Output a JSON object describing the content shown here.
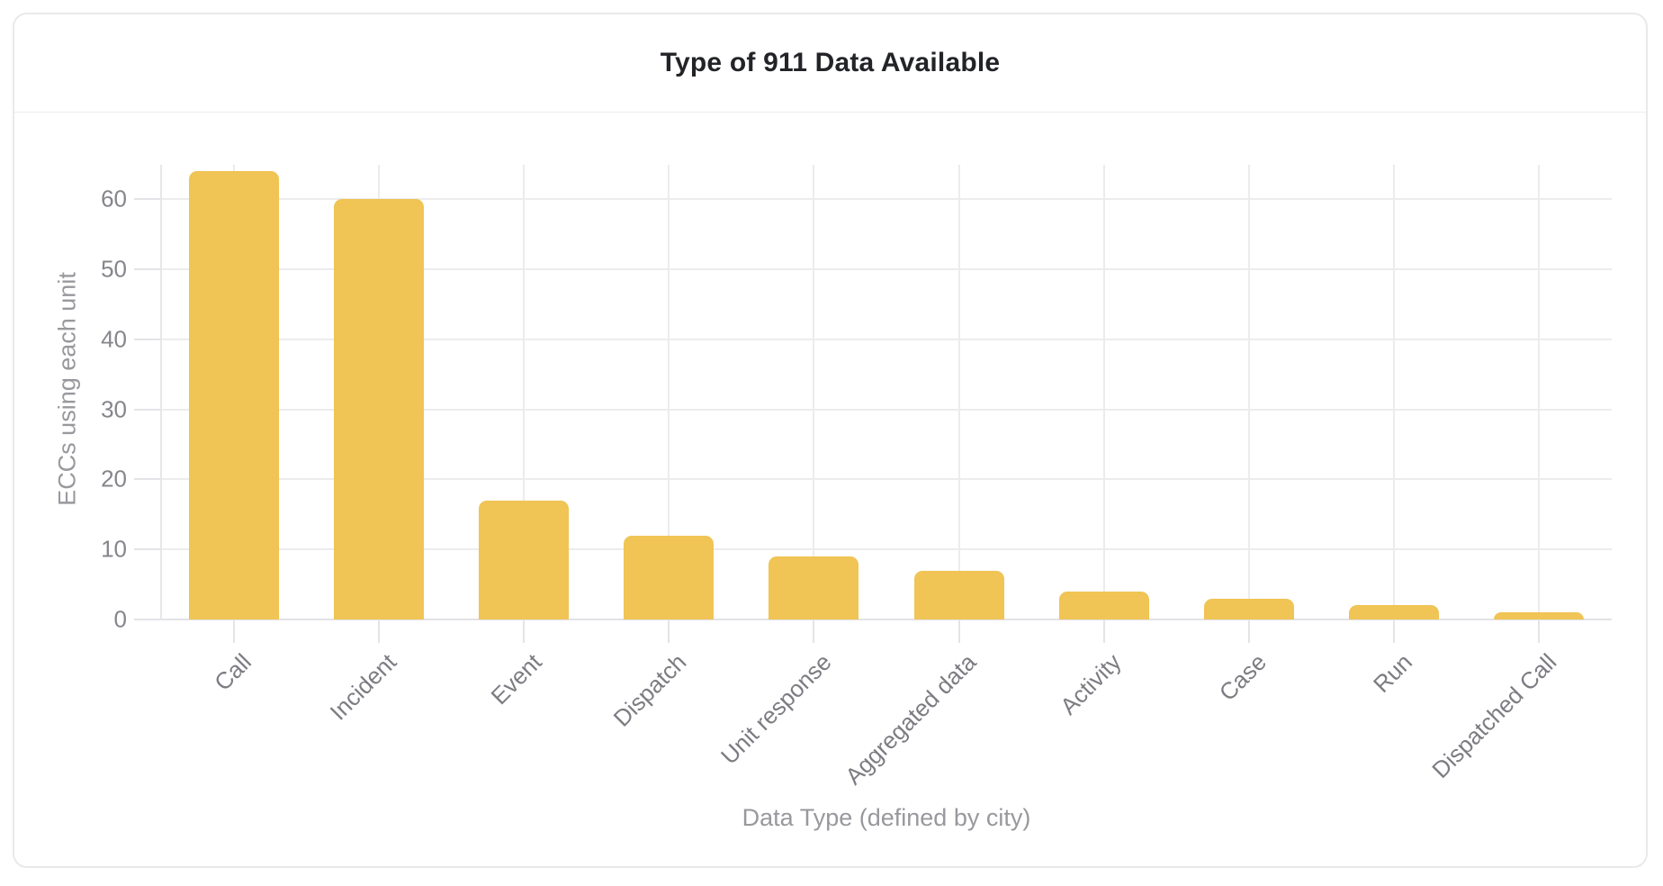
{
  "card": {
    "title": "Type of 911 Data Available"
  },
  "chart_data": {
    "type": "bar",
    "title": "Type of 911 Data Available",
    "categories": [
      "Call",
      "Incident",
      "Event",
      "Dispatch",
      "Unit response",
      "Aggregated data",
      "Activity",
      "Case",
      "Run",
      "Dispatched Call"
    ],
    "values": [
      64,
      60,
      17,
      12,
      9,
      7,
      4,
      3,
      2,
      1
    ],
    "xlabel": "Data Type (defined by city)",
    "ylabel": "ECCs using each unit",
    "ylim": [
      0,
      65
    ],
    "yticks": [
      0,
      10,
      20,
      30,
      40,
      50,
      60
    ],
    "grid": true,
    "legend": "none",
    "bar_color": "#F0C455",
    "grid_color": "#ececef",
    "tick_label_color": "#85858b",
    "axis_title_color": "#98989d",
    "title_color": "#232428"
  }
}
